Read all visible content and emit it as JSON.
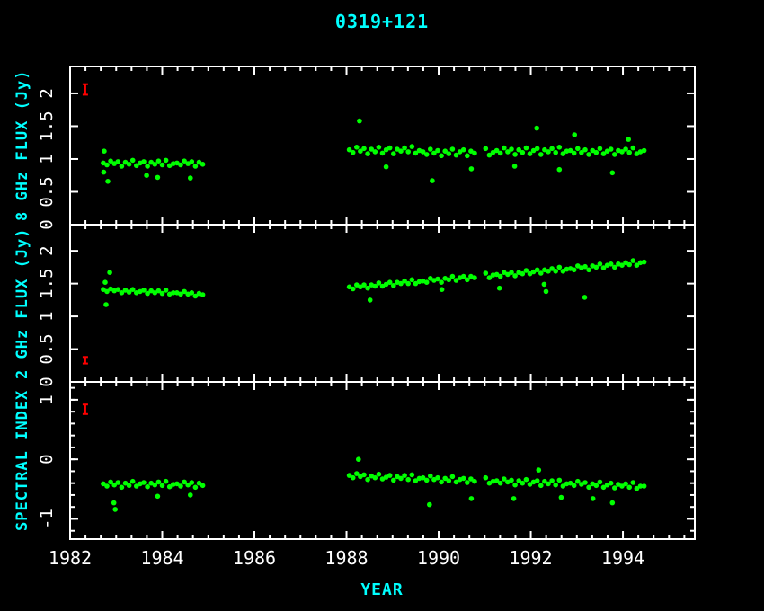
{
  "title": "0319+121",
  "colors": {
    "background": "#000000",
    "frame": "#ffffff",
    "tick_label": "#ffffff",
    "accent": "#00ffff",
    "data_point": "#00ff00",
    "error_bar": "#ff0000"
  },
  "chart_data": {
    "type": "scatter",
    "title": "0319+121",
    "legend": "none",
    "grid": "off",
    "x_axis": {
      "label": "YEAR",
      "range": [
        1982,
        1995.56
      ],
      "major_ticks": [
        1982,
        1984,
        1986,
        1988,
        1990,
        1992,
        1994
      ],
      "tick_labels": [
        "1982",
        "1984",
        "1986",
        "1988",
        "1990",
        "1992",
        "1994"
      ],
      "minor_subdivisions": 6
    },
    "panels": [
      {
        "name": "8ghz-flux",
        "ylabel": "8 GHz FLUX (Jy)",
        "y_range": [
          0,
          2.41
        ],
        "y_major_ticks": [
          0,
          0.5,
          1,
          1.5,
          2
        ],
        "y_tick_labels": [
          "0",
          "0.5",
          "1",
          "1.5",
          "2"
        ],
        "y_minor_step": null,
        "error_bar": {
          "x": 1982.33,
          "y": 2.06,
          "err": 0.08
        },
        "band_left": {
          "x_start": 1982.72,
          "x_step": 0.08,
          "y": [
            0.94,
            0.91,
            0.97,
            0.93,
            0.96,
            0.89,
            0.95,
            0.92,
            0.98,
            0.9,
            0.94,
            0.96,
            0.89,
            0.95,
            0.92,
            0.97,
            0.91,
            0.98,
            0.9,
            0.93,
            0.94,
            0.91,
            0.97,
            0.93,
            0.96,
            0.89,
            0.95,
            0.92
          ]
        },
        "band_right": {
          "x_start": 1988.06,
          "x_step": 0.08,
          "y": [
            1.14,
            1.1,
            1.18,
            1.12,
            1.16,
            1.08,
            1.15,
            1.11,
            1.18,
            1.09,
            1.14,
            1.17,
            1.08,
            1.15,
            1.12,
            1.17,
            1.11,
            1.19,
            1.09,
            1.13,
            1.11,
            1.07,
            1.15,
            1.09,
            1.13,
            1.05,
            1.12,
            1.08,
            1.15,
            1.06,
            1.11,
            1.14,
            1.05,
            1.12,
            1.09,
            null,
            null,
            1.16,
            1.06,
            1.1,
            1.13,
            1.09,
            1.17,
            1.11,
            1.15,
            1.07,
            1.14,
            1.1,
            1.17,
            1.08,
            1.13,
            1.16,
            1.07,
            1.14,
            1.11,
            1.16,
            1.1,
            1.18,
            1.08,
            1.12,
            1.13,
            1.09,
            1.16,
            1.1,
            1.14,
            1.07,
            1.13,
            1.1,
            1.16,
            1.08,
            1.12,
            1.15,
            1.07,
            1.13,
            1.11,
            1.15,
            1.1,
            1.17,
            1.08,
            1.11,
            1.13
          ]
        },
        "outliers": [
          [
            1982.74,
            1.12
          ],
          [
            1982.73,
            0.8
          ],
          [
            1982.82,
            0.66
          ],
          [
            1983.66,
            0.75
          ],
          [
            1983.9,
            0.72
          ],
          [
            1984.61,
            0.71
          ],
          [
            1988.28,
            1.58
          ],
          [
            1988.86,
            0.88
          ],
          [
            1989.86,
            0.67
          ],
          [
            1990.71,
            0.85
          ],
          [
            1991.65,
            0.89
          ],
          [
            1992.13,
            1.47
          ],
          [
            1992.62,
            0.84
          ],
          [
            1992.95,
            1.37
          ],
          [
            1993.77,
            0.79
          ],
          [
            1994.12,
            1.3
          ]
        ]
      },
      {
        "name": "2ghz-flux",
        "ylabel": "2 GHz FLUX (Jy)",
        "y_range": [
          0,
          2.4
        ],
        "y_major_ticks": [
          0,
          0.5,
          1,
          1.5,
          2
        ],
        "y_tick_labels": [
          "0",
          "0.5",
          "1",
          "1.5",
          "2"
        ],
        "y_minor_step": null,
        "error_bar": {
          "x": 1982.33,
          "y": 0.33,
          "err": 0.05
        },
        "band_left": {
          "x_start": 1982.72,
          "x_step": 0.08,
          "y": [
            1.41,
            1.38,
            1.42,
            1.39,
            1.41,
            1.36,
            1.4,
            1.37,
            1.41,
            1.36,
            1.38,
            1.4,
            1.35,
            1.39,
            1.36,
            1.39,
            1.35,
            1.4,
            1.34,
            1.36,
            1.36,
            1.34,
            1.38,
            1.34,
            1.36,
            1.31,
            1.35,
            1.33
          ]
        },
        "band_right": {
          "x_start": 1988.06,
          "x_step": 0.08,
          "y": [
            1.45,
            1.42,
            1.48,
            1.45,
            1.48,
            1.43,
            1.48,
            1.46,
            1.51,
            1.46,
            1.49,
            1.52,
            1.47,
            1.52,
            1.5,
            1.54,
            1.5,
            1.56,
            1.5,
            1.53,
            1.54,
            1.52,
            1.58,
            1.55,
            1.57,
            1.52,
            1.58,
            1.56,
            1.61,
            1.55,
            1.59,
            1.61,
            1.56,
            1.61,
            1.59,
            null,
            null,
            1.66,
            1.59,
            1.63,
            1.64,
            1.61,
            1.67,
            1.64,
            1.67,
            1.62,
            1.67,
            1.65,
            1.7,
            1.65,
            1.68,
            1.71,
            1.66,
            1.71,
            1.69,
            1.73,
            1.69,
            1.75,
            1.69,
            1.72,
            1.73,
            1.71,
            1.77,
            1.74,
            1.76,
            1.71,
            1.77,
            1.75,
            1.8,
            1.74,
            1.78,
            1.8,
            1.75,
            1.8,
            1.78,
            1.82,
            1.79,
            1.85,
            1.78,
            1.82,
            1.83
          ]
        },
        "outliers": [
          [
            1982.86,
            1.67
          ],
          [
            1982.78,
            1.18
          ],
          [
            1982.76,
            1.52
          ],
          [
            1988.51,
            1.25
          ],
          [
            1990.07,
            1.41
          ],
          [
            1991.32,
            1.43
          ],
          [
            1992.29,
            1.49
          ],
          [
            1992.33,
            1.38
          ],
          [
            1993.17,
            1.29
          ]
        ]
      },
      {
        "name": "spectral-index",
        "ylabel": "SPECTRAL INDEX",
        "y_range": [
          -1.34,
          1.3
        ],
        "y_major_ticks": [
          -1,
          0,
          1
        ],
        "y_tick_labels": [
          "-1",
          "0",
          "1"
        ],
        "y_minor_step": 0.2,
        "error_bar": {
          "x": 1982.33,
          "y": 0.84,
          "err": 0.08
        },
        "band_left": {
          "x_start": 1982.72,
          "x_step": 0.08,
          "y": [
            -0.41,
            -0.45,
            -0.38,
            -0.43,
            -0.39,
            -0.47,
            -0.4,
            -0.44,
            -0.37,
            -0.45,
            -0.41,
            -0.39,
            -0.46,
            -0.4,
            -0.43,
            -0.38,
            -0.44,
            -0.37,
            -0.46,
            -0.42,
            -0.41,
            -0.45,
            -0.38,
            -0.43,
            -0.39,
            -0.47,
            -0.4,
            -0.44
          ]
        },
        "band_right": {
          "x_start": 1988.06,
          "x_step": 0.08,
          "y": [
            -0.27,
            -0.31,
            -0.24,
            -0.29,
            -0.26,
            -0.34,
            -0.28,
            -0.31,
            -0.25,
            -0.33,
            -0.3,
            -0.27,
            -0.35,
            -0.29,
            -0.32,
            -0.27,
            -0.34,
            -0.26,
            -0.36,
            -0.32,
            -0.31,
            -0.35,
            -0.28,
            -0.34,
            -0.31,
            -0.38,
            -0.32,
            -0.36,
            -0.29,
            -0.38,
            -0.34,
            -0.32,
            -0.39,
            -0.33,
            -0.37,
            null,
            null,
            -0.31,
            -0.4,
            -0.37,
            -0.36,
            -0.4,
            -0.33,
            -0.38,
            -0.35,
            -0.43,
            -0.36,
            -0.4,
            -0.34,
            -0.42,
            -0.38,
            -0.36,
            -0.44,
            -0.37,
            -0.41,
            -0.36,
            -0.43,
            -0.35,
            -0.45,
            -0.41,
            -0.4,
            -0.44,
            -0.37,
            -0.42,
            -0.39,
            -0.47,
            -0.41,
            -0.44,
            -0.38,
            -0.47,
            -0.43,
            -0.4,
            -0.48,
            -0.42,
            -0.45,
            -0.41,
            -0.47,
            -0.39,
            -0.49,
            -0.45,
            -0.45
          ]
        },
        "outliers": [
          [
            1982.95,
            -0.73
          ],
          [
            1982.98,
            -0.84
          ],
          [
            1983.9,
            -0.62
          ],
          [
            1984.61,
            -0.6
          ],
          [
            1988.26,
            0.0
          ],
          [
            1989.8,
            -0.76
          ],
          [
            1990.71,
            -0.66
          ],
          [
            1991.63,
            -0.66
          ],
          [
            1992.17,
            -0.18
          ],
          [
            1992.66,
            -0.64
          ],
          [
            1993.35,
            -0.66
          ],
          [
            1993.77,
            -0.73
          ]
        ]
      }
    ]
  }
}
